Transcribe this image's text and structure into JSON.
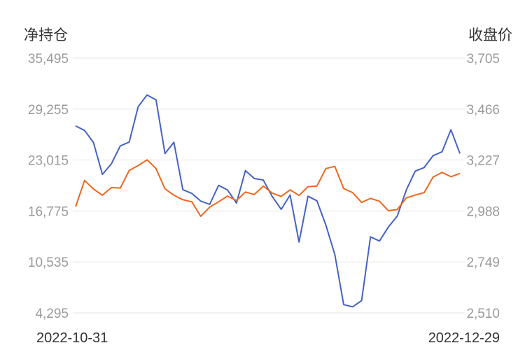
{
  "chart_data": {
    "type": "line",
    "y_left_label": "净持仓",
    "y_right_label": "收盘价",
    "y_left_ticks": [
      "35,495",
      "29,255",
      "23,015",
      "16,775",
      "10,535",
      "4,295"
    ],
    "y_right_ticks": [
      "3,705",
      "3,466",
      "3,227",
      "2,988",
      "2,749",
      "2,510"
    ],
    "y_left_range": [
      4295,
      35495
    ],
    "y_right_range": [
      2510,
      3705
    ],
    "x_start_label": "2022-10-31",
    "x_end_label": "2022-12-29",
    "grid": true,
    "series": [
      {
        "axis": "left",
        "color": "#4462c4",
        "values": [
          27190,
          26640,
          25160,
          21260,
          22540,
          24740,
          25220,
          29550,
          30980,
          30390,
          23800,
          25180,
          19390,
          18930,
          17990,
          17580,
          19910,
          19350,
          17740,
          21720,
          20750,
          20560,
          18550,
          16970,
          18730,
          12970,
          18580,
          18030,
          15060,
          11450,
          5310,
          5040,
          5800,
          13600,
          13100,
          14820,
          16170,
          19340,
          21660,
          22090,
          23550,
          24030,
          26730,
          23810
        ]
      },
      {
        "axis": "right",
        "color": "#f0661c",
        "values": [
          3008,
          3131,
          3091,
          3062,
          3098,
          3095,
          3178,
          3201,
          3228,
          3187,
          3092,
          3062,
          3041,
          3031,
          2963,
          3006,
          3031,
          3058,
          3037,
          3077,
          3065,
          3105,
          3072,
          3056,
          3087,
          3061,
          3102,
          3105,
          3187,
          3197,
          3093,
          3074,
          3028,
          3047,
          3034,
          2989,
          2995,
          3049,
          3063,
          3074,
          3147,
          3169,
          3149,
          3164
        ]
      }
    ]
  }
}
